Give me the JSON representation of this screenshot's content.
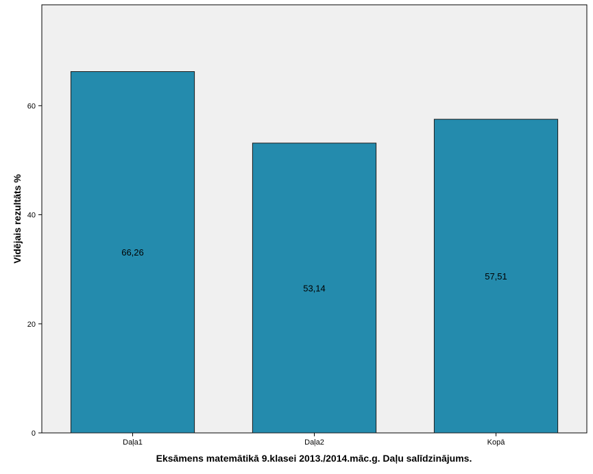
{
  "chart_data": {
    "type": "bar",
    "title": "",
    "xlabel": "Eksāmens matemātikā 9.klasei 2013./2014.māc.g. Daļu salīdzinājums.",
    "ylabel": "Vidējais rezultāts %",
    "categories": [
      "Daļa1",
      "Daļa2",
      "Kopā"
    ],
    "values": [
      66.26,
      53.14,
      57.51
    ],
    "data_labels": [
      "66,26",
      "53,14",
      "57,51"
    ],
    "ylim": [
      0,
      78.5
    ],
    "yticks": [
      0,
      20,
      40,
      60
    ],
    "ytick_labels": [
      "0",
      "20",
      "40",
      "60"
    ],
    "grid": false,
    "colors": {
      "plot_background": "#f0f0f0",
      "bar_fill": "#248bad",
      "bar_stroke": "#1a1a1a",
      "axis": "#000000"
    }
  }
}
